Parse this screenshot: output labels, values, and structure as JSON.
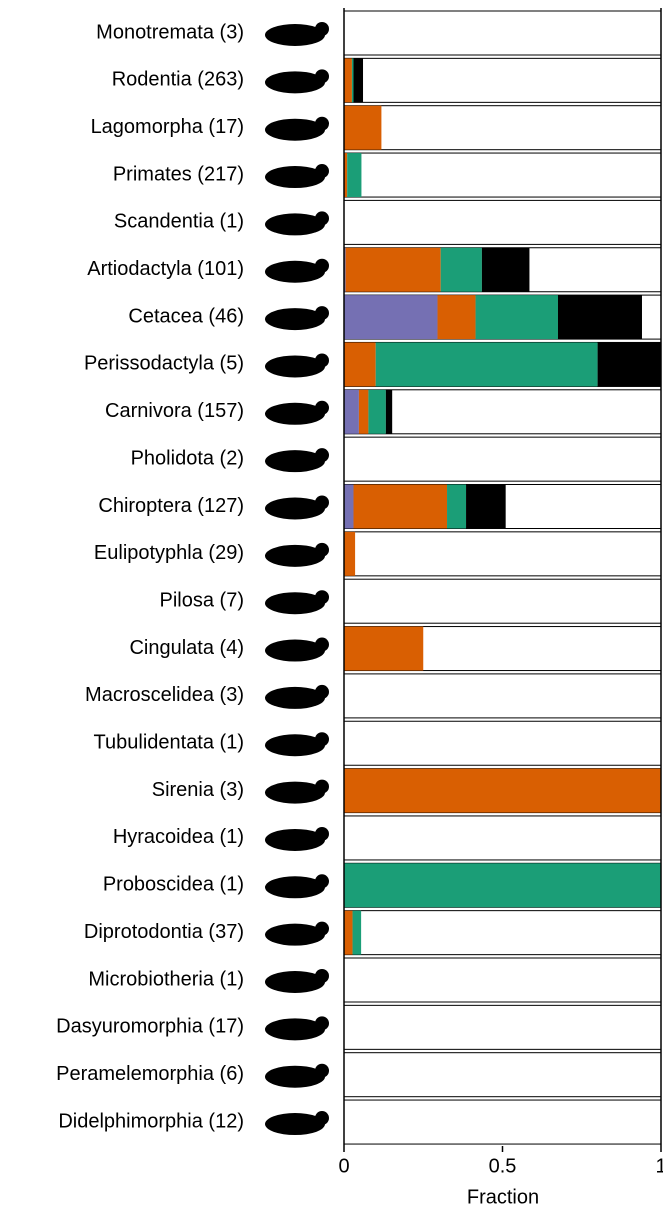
{
  "chart_data": {
    "type": "stacked-barh",
    "categories": [
      "Monotremata (3)",
      "Rodentia (263)",
      "Lagomorpha (17)",
      "Primates (217)",
      "Scandentia (1)",
      "Artiodactyla (101)",
      "Cetacea (46)",
      "Perissodactyla (5)",
      "Carnivora (157)",
      "Pholidota (2)",
      "Chiroptera (127)",
      "Eulipotyphla (29)",
      "Pilosa (7)",
      "Cingulata (4)",
      "Macroscelidea (3)",
      "Tubulidentata (1)",
      "Sirenia (3)",
      "Hyracoidea (1)",
      "Proboscidea (1)",
      "Diprotodontia (37)",
      "Microbiotheria (1)",
      "Dasyuromorphia (17)",
      "Peramelemorphia (6)",
      "Didelphimorphia (12)"
    ],
    "series": [
      {
        "color": "#7570b3",
        "values": [
          0,
          0,
          0,
          0,
          0,
          0.005,
          0.295,
          0,
          0.047,
          0,
          0.03,
          0,
          0,
          0,
          0,
          0,
          0,
          0,
          0,
          0,
          0,
          0,
          0,
          0
        ]
      },
      {
        "color": "#d95f02",
        "values": [
          0,
          0.025,
          0.118,
          0.01,
          0,
          0.3,
          0.12,
          0.1,
          0.03,
          0,
          0.295,
          0.035,
          0,
          0.25,
          0,
          0,
          1,
          0,
          0,
          0.027,
          0,
          0,
          0,
          0
        ]
      },
      {
        "color": "#1b9e77",
        "values": [
          0,
          0.005,
          0,
          0.045,
          0,
          0.13,
          0.26,
          0.7,
          0.055,
          0,
          0.06,
          0,
          0,
          0,
          0,
          0,
          0,
          0,
          1,
          0.027,
          0,
          0,
          0,
          0
        ]
      },
      {
        "color": "#000000",
        "values": [
          0,
          0.03,
          0,
          0,
          0,
          0.15,
          0.265,
          0.2,
          0.02,
          0,
          0.125,
          0,
          0,
          0,
          0,
          0,
          0,
          0,
          0,
          0,
          0,
          0,
          0,
          0
        ]
      }
    ],
    "xlim": [
      0,
      1
    ],
    "xticks": [
      0,
      0.5,
      1
    ],
    "xlabel": "Fraction"
  }
}
